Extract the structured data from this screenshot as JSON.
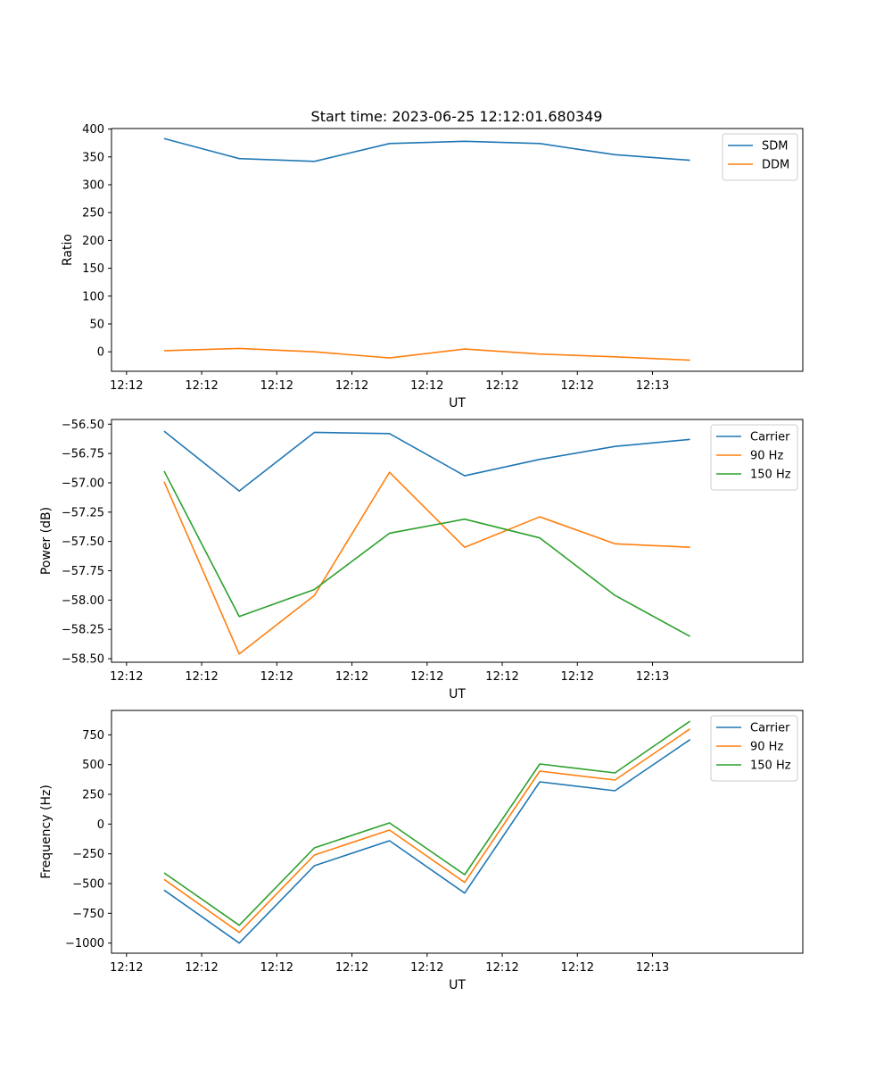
{
  "figure": {
    "title": "Start time: 2023-06-25 12:12:01.680349"
  },
  "chart_data": [
    {
      "type": "line",
      "title": "Start time: 2023-06-25 12:12:01.680349",
      "xlabel": "UT",
      "ylabel": "Ratio",
      "x_tick_labels": [
        "12:12",
        "12:12",
        "12:12",
        "12:12",
        "12:12",
        "12:12",
        "12:12",
        "12:13"
      ],
      "xlim": [
        -0.2,
        9.0
      ],
      "x": [
        0.5,
        1.5,
        2.5,
        3.5,
        4.5,
        5.5,
        6.5,
        7.5
      ],
      "yticks": [
        0,
        50,
        100,
        150,
        200,
        250,
        300,
        350,
        400
      ],
      "ylim": [
        -35,
        401
      ],
      "legend": "top-right",
      "grid": false,
      "series": [
        {
          "name": "SDM",
          "color": "#1f77b4",
          "values": [
            383,
            347,
            342,
            374,
            378,
            374,
            354,
            344
          ]
        },
        {
          "name": "DDM",
          "color": "#ff7f0e",
          "values": [
            2,
            6,
            0,
            -11,
            5,
            -4,
            -9,
            -15
          ]
        }
      ]
    },
    {
      "type": "line",
      "title": "",
      "xlabel": "UT",
      "ylabel": "Power (dB)",
      "x_tick_labels": [
        "12:12",
        "12:12",
        "12:12",
        "12:12",
        "12:12",
        "12:12",
        "12:12",
        "12:13"
      ],
      "xlim": [
        -0.2,
        9.0
      ],
      "x": [
        0.5,
        1.5,
        2.5,
        3.5,
        4.5,
        5.5,
        6.5,
        7.5
      ],
      "yticks": [
        -58.5,
        -58.25,
        -58.0,
        -57.75,
        -57.5,
        -57.25,
        -57.0,
        -56.75,
        -56.5
      ],
      "ytick_labels": [
        "−58.50",
        "−58.25",
        "−58.00",
        "−57.75",
        "−57.50",
        "−57.25",
        "−57.00",
        "−56.75",
        "−56.50"
      ],
      "ylim": [
        -58.53,
        -56.46
      ],
      "legend": "top-right",
      "grid": false,
      "series": [
        {
          "name": "Carrier",
          "color": "#1f77b4",
          "values": [
            -56.56,
            -57.07,
            -56.57,
            -56.58,
            -56.94,
            -56.8,
            -56.69,
            -56.63
          ]
        },
        {
          "name": "90 Hz",
          "color": "#ff7f0e",
          "values": [
            -56.99,
            -58.46,
            -57.96,
            -56.91,
            -57.55,
            -57.29,
            -57.52,
            -57.55
          ]
        },
        {
          "name": "150 Hz",
          "color": "#2ca02c",
          "values": [
            -56.9,
            -58.14,
            -57.91,
            -57.43,
            -57.31,
            -57.47,
            -57.96,
            -58.31
          ]
        }
      ]
    },
    {
      "type": "line",
      "title": "",
      "xlabel": "UT",
      "ylabel": "Frequency (Hz)",
      "x_tick_labels": [
        "12:12",
        "12:12",
        "12:12",
        "12:12",
        "12:12",
        "12:12",
        "12:12",
        "12:13"
      ],
      "xlim": [
        -0.2,
        9.0
      ],
      "x": [
        0.5,
        1.5,
        2.5,
        3.5,
        4.5,
        5.5,
        6.5,
        7.5
      ],
      "yticks": [
        -1000,
        -750,
        -500,
        -250,
        0,
        250,
        500,
        750
      ],
      "ytick_labels": [
        "−1000",
        "−750",
        "−500",
        "−250",
        "0",
        "250",
        "500",
        "750"
      ],
      "ylim": [
        -1085,
        955
      ],
      "legend": "top-right",
      "grid": false,
      "series": [
        {
          "name": "Carrier",
          "color": "#1f77b4",
          "values": [
            -555,
            -1000,
            -350,
            -140,
            -580,
            355,
            280,
            710
          ]
        },
        {
          "name": "90 Hz",
          "color": "#ff7f0e",
          "values": [
            -465,
            -910,
            -260,
            -50,
            -490,
            445,
            370,
            800
          ]
        },
        {
          "name": "150 Hz",
          "color": "#2ca02c",
          "values": [
            -410,
            -850,
            -200,
            10,
            -425,
            505,
            430,
            865
          ]
        }
      ]
    }
  ]
}
